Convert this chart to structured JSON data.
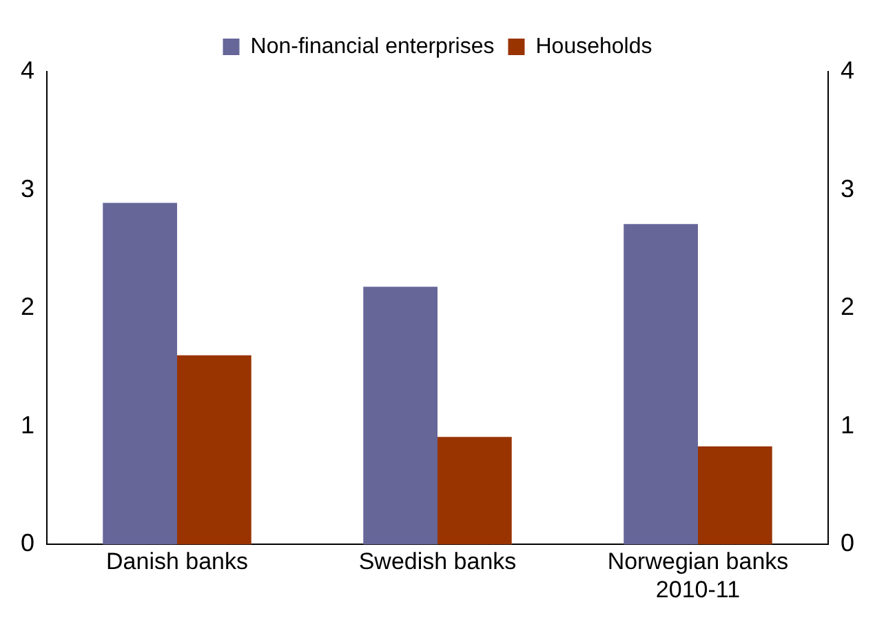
{
  "chart_data": {
    "type": "bar",
    "categories": [
      "Danish banks",
      "Swedish banks",
      "Norwegian banks 2010-11"
    ],
    "series": [
      {
        "name": "Non-financial enterprises",
        "color": "#666699",
        "values": [
          2.89,
          2.18,
          2.71
        ]
      },
      {
        "name": "Households",
        "color": "#993300",
        "values": [
          1.6,
          0.91,
          0.83
        ]
      }
    ],
    "ylim": [
      0,
      4
    ],
    "yticks": [
      0,
      1,
      2,
      3,
      4
    ],
    "y2lim": [
      0,
      4
    ],
    "y2ticks": [
      0,
      1,
      2,
      3,
      4
    ],
    "grid": false,
    "legend": "top"
  }
}
